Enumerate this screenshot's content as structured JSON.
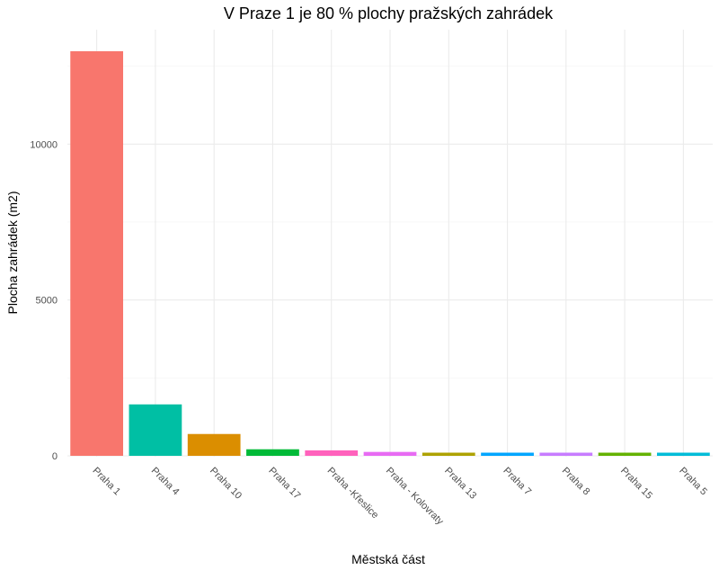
{
  "chart_data": {
    "type": "bar",
    "title": "V Praze 1 je 80 % plochy pražských zahrádek",
    "xlabel": "Městská část",
    "ylabel": "Plocha zahrádek (m2)",
    "categories": [
      "Praha 1",
      "Praha 4",
      "Praha 10",
      "Praha 17",
      "Praha -Křeslice",
      "Praha - Kolovraty",
      "Praha 13",
      "Praha 7",
      "Praha 8",
      "Praha 15",
      "Praha 5"
    ],
    "values": [
      12980,
      1650,
      700,
      210,
      175,
      125,
      95,
      85,
      80,
      75,
      55
    ],
    "colors": [
      "#F8766D",
      "#00BFA4",
      "#DB8E00",
      "#00BA38",
      "#FF62BC",
      "#E76BF3",
      "#AEA200",
      "#00A6FF",
      "#C77CFF",
      "#64B200",
      "#00BCD8"
    ],
    "yticks": [
      0,
      5000,
      10000
    ],
    "ytick_labels": [
      "0",
      "5000",
      "10000"
    ],
    "ylim": [
      0,
      13650
    ],
    "grid": true,
    "legend": "none"
  }
}
